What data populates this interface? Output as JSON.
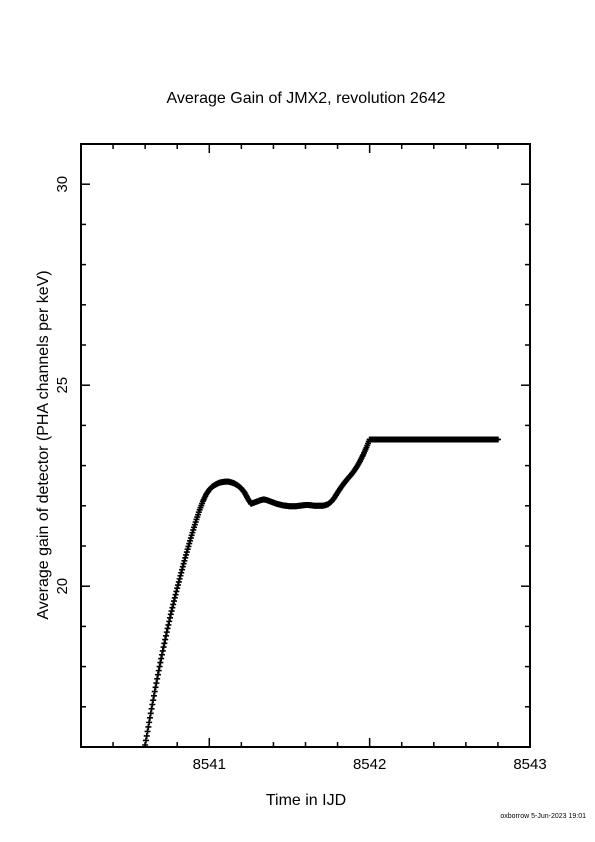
{
  "chart_data": {
    "type": "line",
    "title": "Average Gain of JMX2, revolution 2642",
    "xlabel": "Time in IJD",
    "ylabel": "Average gain of detector (PHA channels per keV)",
    "xlim": [
      8540.2,
      8543.0
    ],
    "ylim": [
      16.0,
      31.0
    ],
    "x_ticks": [
      8541,
      8542,
      8543
    ],
    "x_tick_labels": [
      "8541",
      "8542",
      "8543"
    ],
    "y_ticks": [
      20,
      25,
      30
    ],
    "y_tick_labels": [
      "20",
      "25",
      "30"
    ],
    "grid": false,
    "marker": "plus",
    "color": "#000000",
    "series": [
      {
        "x": [
          8540.6,
          8540.62,
          8540.64,
          8540.66,
          8540.68,
          8540.7,
          8540.72,
          8540.74,
          8540.76,
          8540.78,
          8540.8,
          8540.82,
          8540.84,
          8540.86,
          8540.88,
          8540.9,
          8540.92,
          8540.94,
          8540.96,
          8540.98,
          8541.0,
          8541.02,
          8541.04,
          8541.06,
          8541.08,
          8541.1,
          8541.12,
          8541.14,
          8541.16,
          8541.18,
          8541.2,
          8541.22,
          8541.24,
          8541.26,
          8541.28,
          8541.3,
          8541.32,
          8541.34,
          8541.36,
          8541.38,
          8541.4,
          8541.42,
          8541.44,
          8541.46,
          8541.48,
          8541.5,
          8541.52,
          8541.54,
          8541.56,
          8541.58,
          8541.6,
          8541.62,
          8541.64,
          8541.66,
          8541.68,
          8541.7,
          8541.72,
          8541.74,
          8541.76,
          8541.78,
          8541.8,
          8541.82,
          8541.84,
          8541.86,
          8541.88,
          8541.9,
          8541.92,
          8541.94,
          8541.96,
          8541.98,
          8542.0,
          8542.02,
          8542.04,
          8542.06,
          8542.08,
          8542.1,
          8542.12,
          8542.14,
          8542.16,
          8542.18,
          8542.2,
          8542.22,
          8542.24,
          8542.26,
          8542.28,
          8542.3,
          8542.32,
          8542.34,
          8542.36,
          8542.38,
          8542.4,
          8542.42,
          8542.44,
          8542.46,
          8542.48,
          8542.5,
          8542.52,
          8542.54,
          8542.56,
          8542.58,
          8542.6,
          8542.62,
          8542.64,
          8542.66,
          8542.68,
          8542.7,
          8542.72,
          8542.74,
          8542.76,
          8542.78,
          8542.8
        ],
        "y": [
          16.05,
          16.5,
          16.95,
          17.38,
          17.8,
          18.2,
          18.58,
          18.95,
          19.3,
          19.63,
          19.95,
          20.26,
          20.56,
          20.85,
          21.13,
          21.4,
          21.66,
          21.9,
          22.11,
          22.28,
          22.4,
          22.48,
          22.53,
          22.57,
          22.59,
          22.6,
          22.6,
          22.58,
          22.55,
          22.5,
          22.43,
          22.33,
          22.18,
          22.05,
          22.08,
          22.11,
          22.14,
          22.16,
          22.14,
          22.11,
          22.08,
          22.05,
          22.03,
          22.01,
          22.0,
          21.99,
          21.99,
          21.99,
          22.0,
          22.01,
          22.02,
          22.02,
          22.01,
          22.0,
          22.0,
          22.0,
          22.01,
          22.04,
          22.1,
          22.2,
          22.33,
          22.45,
          22.56,
          22.66,
          22.75,
          22.85,
          22.97,
          23.11,
          23.27,
          23.45,
          23.65,
          23.65,
          23.65,
          23.65,
          23.65,
          23.65,
          23.65,
          23.65,
          23.65,
          23.65,
          23.65,
          23.65,
          23.65,
          23.65,
          23.65,
          23.65,
          23.65,
          23.65,
          23.65,
          23.65,
          23.65,
          23.65,
          23.65,
          23.65,
          23.65,
          23.65,
          23.65,
          23.65,
          23.65,
          23.65,
          23.65,
          23.65,
          23.65,
          23.65,
          23.65,
          23.65,
          23.65,
          23.65,
          23.65,
          23.65,
          23.65
        ]
      }
    ]
  },
  "footer": "oxborrow  5-Jun-2023 19:01"
}
